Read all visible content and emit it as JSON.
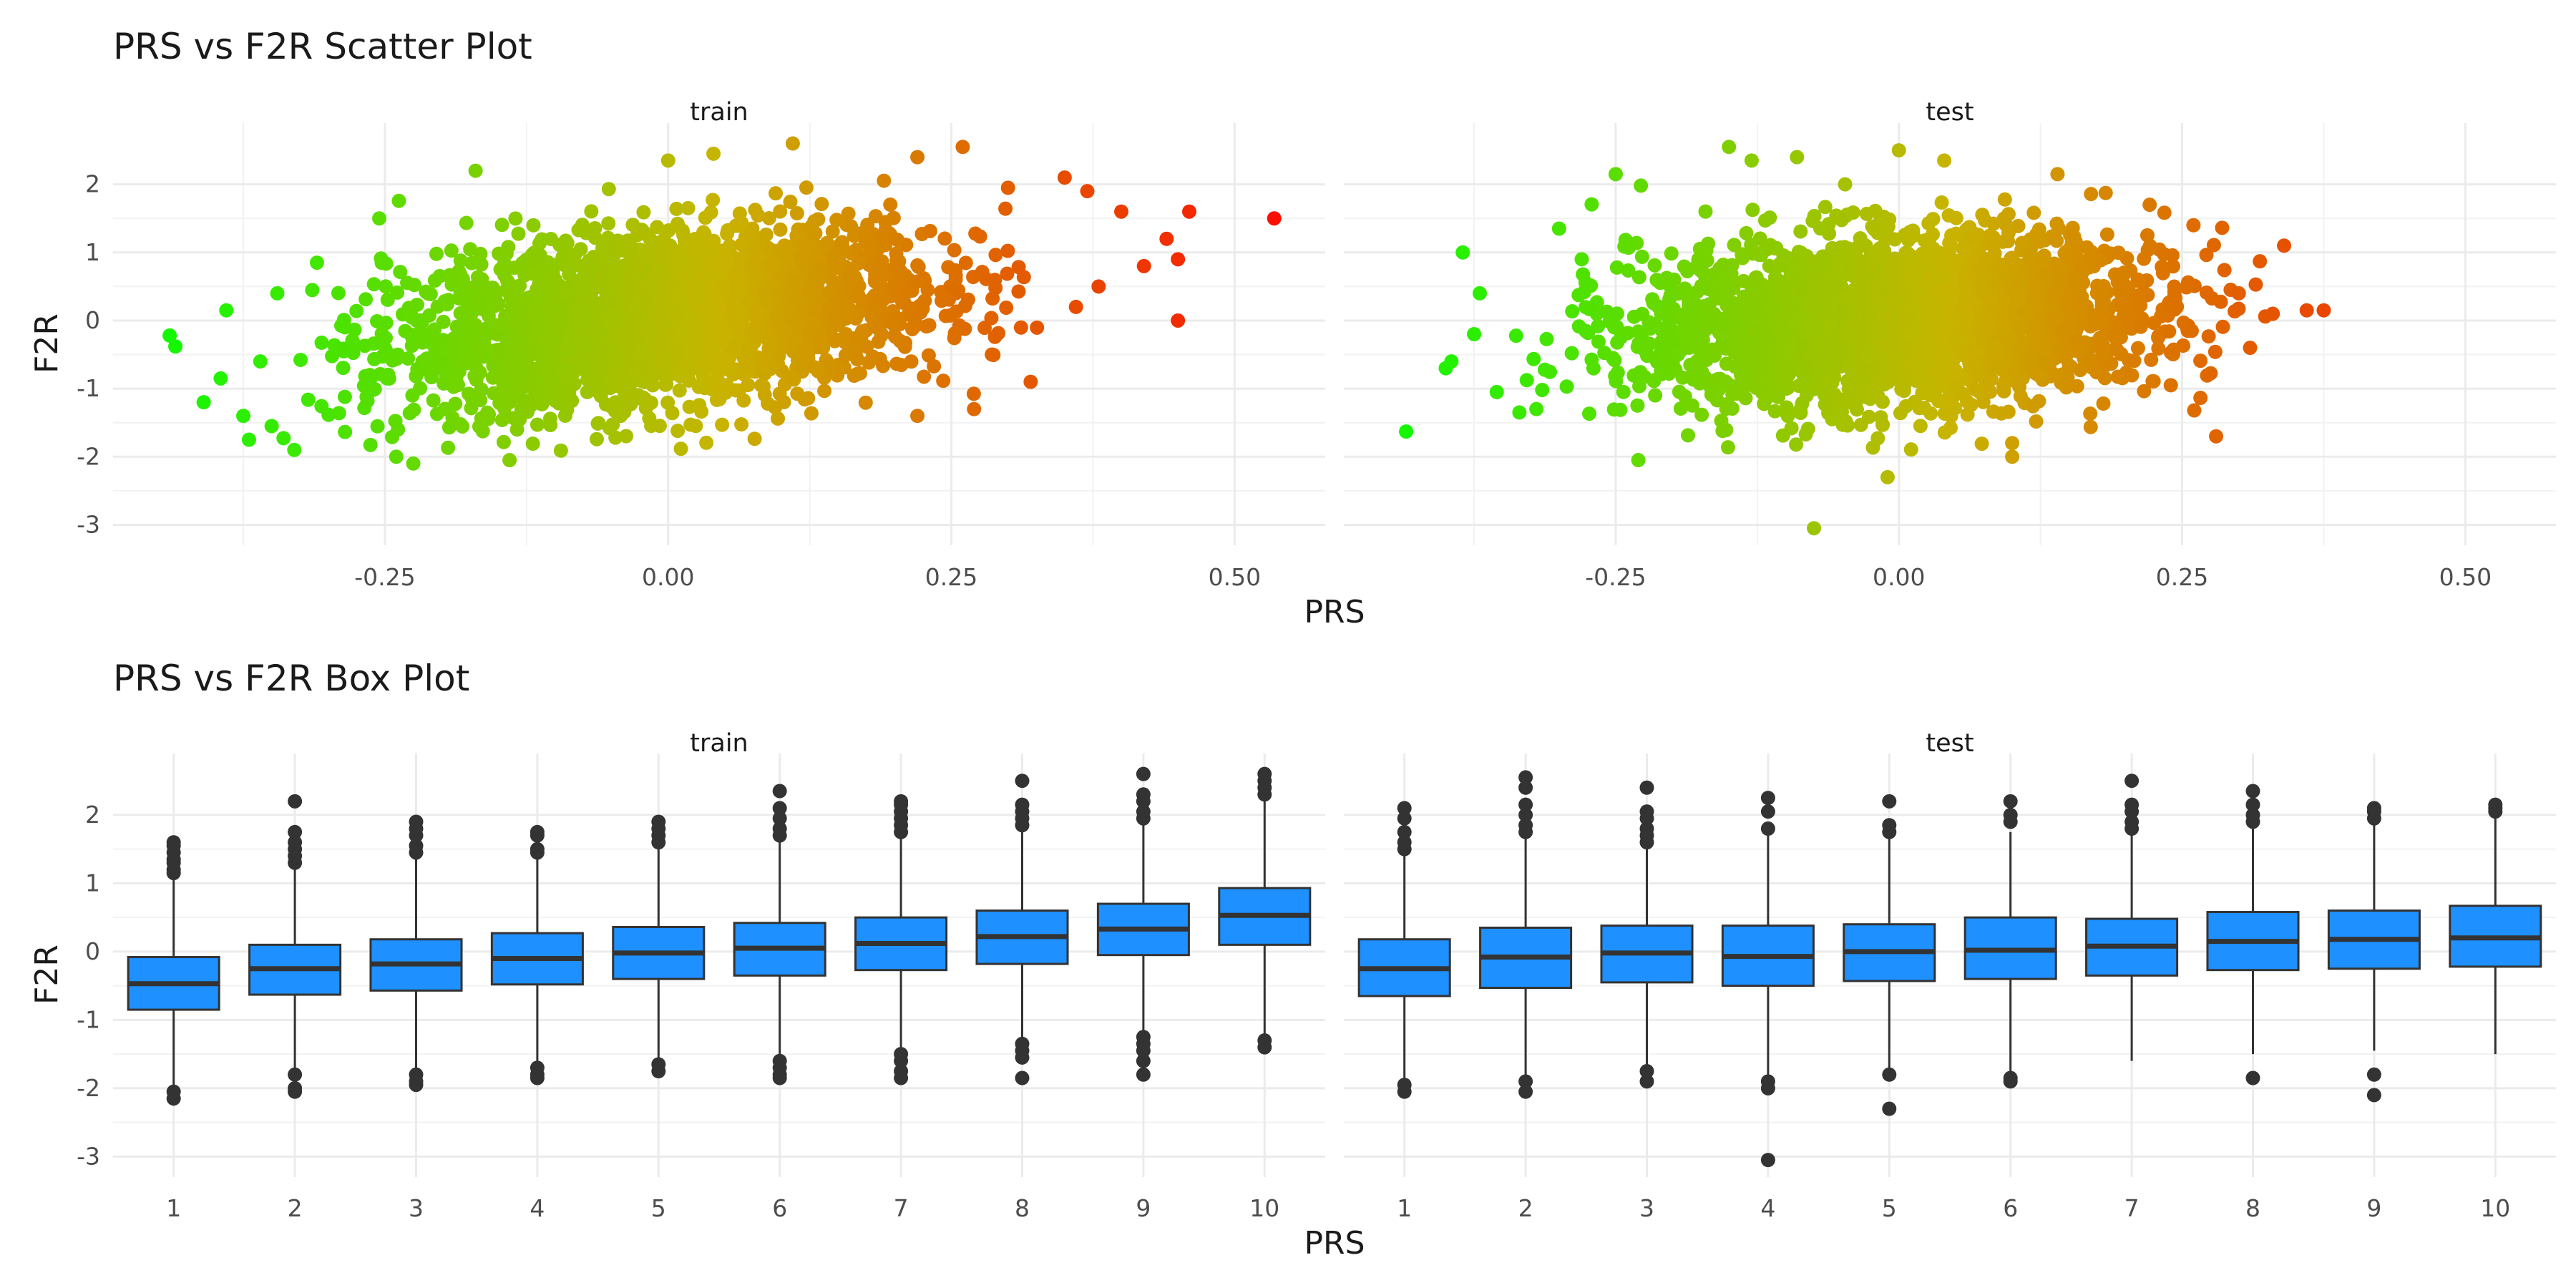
{
  "chart_data": [
    {
      "type": "scatter",
      "title": "PRS vs F2R Scatter Plot",
      "xlabel": "PRS",
      "ylabel": "F2R",
      "facets": [
        "train",
        "test"
      ],
      "xlim": [
        -0.49,
        0.58
      ],
      "ylim": [
        -3.3,
        2.9
      ],
      "x_ticks": [
        "-0.25",
        "0.00",
        "0.25",
        "0.50"
      ],
      "x_tick_values": [
        -0.25,
        0,
        0.25,
        0.5
      ],
      "y_ticks": [
        "2",
        "1",
        "0",
        "-1",
        "-2",
        "-3"
      ],
      "y_tick_values": [
        2,
        1,
        0,
        -1,
        -2,
        -3
      ],
      "color_scale": {
        "low": "#00ff00",
        "mid": "#c8b400",
        "high": "#ff0000",
        "mapped_to": "PRS"
      },
      "grid": true,
      "legend": "none",
      "series": [
        {
          "name": "train",
          "trend_slope": 1.9,
          "points": [
            [
              -0.44,
              -0.22
            ],
            [
              -0.435,
              -0.38
            ],
            [
              -0.41,
              -1.2
            ],
            [
              -0.395,
              -0.85
            ],
            [
              -0.39,
              0.15
            ],
            [
              -0.375,
              -1.4
            ],
            [
              -0.37,
              -1.75
            ],
            [
              -0.36,
              -0.6
            ],
            [
              -0.35,
              -1.55
            ],
            [
              -0.345,
              0.4
            ],
            [
              -0.33,
              -1.9
            ],
            [
              -0.31,
              0.85
            ],
            [
              -0.255,
              1.5
            ],
            [
              -0.24,
              -2.0
            ],
            [
              -0.225,
              -2.1
            ],
            [
              -0.17,
              2.2
            ],
            [
              -0.14,
              -2.05
            ],
            [
              0.0,
              2.35
            ],
            [
              0.04,
              2.45
            ],
            [
              0.11,
              2.6
            ],
            [
              0.22,
              2.4
            ],
            [
              0.26,
              2.55
            ],
            [
              0.3,
              1.95
            ],
            [
              0.32,
              -0.9
            ],
            [
              0.35,
              2.1
            ],
            [
              0.37,
              1.9
            ],
            [
              0.4,
              1.6
            ],
            [
              0.42,
              0.8
            ],
            [
              0.44,
              1.2
            ],
            [
              0.45,
              0.0
            ],
            [
              0.45,
              0.9
            ],
            [
              0.46,
              1.6
            ],
            [
              0.535,
              1.5
            ],
            [
              0.27,
              -1.3
            ],
            [
              0.22,
              -1.4
            ],
            [
              0.36,
              0.2
            ],
            [
              0.38,
              0.5
            ]
          ]
        },
        {
          "name": "test",
          "trend_slope": 1.0,
          "points": [
            [
              -0.435,
              -1.63
            ],
            [
              -0.4,
              -0.7
            ],
            [
              -0.395,
              -0.6
            ],
            [
              -0.385,
              1.0
            ],
            [
              -0.375,
              -0.2
            ],
            [
              -0.37,
              0.4
            ],
            [
              -0.355,
              -1.05
            ],
            [
              -0.335,
              -1.35
            ],
            [
              -0.32,
              -1.3
            ],
            [
              -0.3,
              1.35
            ],
            [
              -0.28,
              0.9
            ],
            [
              -0.25,
              2.15
            ],
            [
              -0.23,
              -2.05
            ],
            [
              -0.15,
              2.55
            ],
            [
              -0.13,
              2.35
            ],
            [
              -0.09,
              2.4
            ],
            [
              -0.075,
              -3.05
            ],
            [
              -0.01,
              -2.3
            ],
            [
              0.0,
              2.5
            ],
            [
              0.04,
              2.35
            ],
            [
              0.1,
              -2.0
            ],
            [
              0.1,
              -1.8
            ],
            [
              0.14,
              2.15
            ],
            [
              0.24,
              -0.95
            ],
            [
              0.26,
              1.4
            ],
            [
              0.28,
              -1.7
            ],
            [
              0.3,
              0.4
            ],
            [
              0.33,
              0.1
            ],
            [
              0.34,
              1.1
            ],
            [
              0.36,
              0.15
            ],
            [
              0.375,
              0.15
            ],
            [
              0.31,
              -0.4
            ]
          ]
        }
      ]
    },
    {
      "type": "box",
      "title": "PRS vs F2R Box Plot",
      "xlabel": "PRS",
      "ylabel": "F2R",
      "facets": [
        "train",
        "test"
      ],
      "categories": [
        "1",
        "2",
        "3",
        "4",
        "5",
        "6",
        "7",
        "8",
        "9",
        "10"
      ],
      "ylim": [
        -3.3,
        2.9
      ],
      "y_ticks": [
        "2",
        "1",
        "0",
        "-1",
        "-2",
        "-3"
      ],
      "y_tick_values": [
        2,
        1,
        0,
        -1,
        -2,
        -3
      ],
      "box_fill": "#1e90ff",
      "box_stroke": "#333333",
      "grid": true,
      "series": [
        {
          "name": "train",
          "boxes": [
            {
              "q1": -0.85,
              "median": -0.47,
              "q3": -0.08,
              "lo": -2.0,
              "hi": 1.05,
              "outliers": [
                1.15,
                1.2,
                1.3,
                1.35,
                1.45,
                1.55,
                1.6,
                -2.05,
                -2.15
              ]
            },
            {
              "q1": -0.63,
              "median": -0.25,
              "q3": 0.1,
              "lo": -1.75,
              "hi": 1.2,
              "outliers": [
                1.3,
                1.4,
                1.5,
                1.6,
                1.75,
                2.2,
                -1.8,
                -2.0,
                -2.05
              ]
            },
            {
              "q1": -0.57,
              "median": -0.18,
              "q3": 0.18,
              "lo": -1.7,
              "hi": 1.35,
              "outliers": [
                1.45,
                1.55,
                1.7,
                1.8,
                1.9,
                -1.8,
                -1.9,
                -1.95
              ]
            },
            {
              "q1": -0.48,
              "median": -0.1,
              "q3": 0.27,
              "lo": -1.6,
              "hi": 1.4,
              "outliers": [
                1.45,
                1.5,
                1.7,
                1.75,
                -1.7,
                -1.8,
                -1.85
              ]
            },
            {
              "q1": -0.4,
              "median": -0.02,
              "q3": 0.36,
              "lo": -1.6,
              "hi": 1.55,
              "outliers": [
                1.6,
                1.7,
                1.8,
                1.9,
                -1.65,
                -1.75
              ]
            },
            {
              "q1": -0.35,
              "median": 0.05,
              "q3": 0.42,
              "lo": -1.5,
              "hi": 1.65,
              "outliers": [
                1.7,
                1.8,
                1.95,
                2.1,
                2.35,
                -1.6,
                -1.7,
                -1.8,
                -1.85
              ]
            },
            {
              "q1": -0.27,
              "median": 0.12,
              "q3": 0.5,
              "lo": -1.4,
              "hi": 1.7,
              "outliers": [
                1.75,
                1.85,
                1.95,
                2.05,
                2.15,
                2.2,
                -1.5,
                -1.6,
                -1.75,
                -1.85
              ]
            },
            {
              "q1": -0.18,
              "median": 0.22,
              "q3": 0.6,
              "lo": -1.3,
              "hi": 1.8,
              "outliers": [
                1.85,
                1.95,
                2.05,
                2.15,
                2.5,
                -1.35,
                -1.45,
                -1.55,
                -1.85
              ]
            },
            {
              "q1": -0.05,
              "median": 0.33,
              "q3": 0.7,
              "lo": -1.15,
              "hi": 1.85,
              "outliers": [
                1.95,
                2.05,
                2.2,
                2.3,
                2.6,
                -1.25,
                -1.35,
                -1.45,
                -1.6,
                -1.8
              ]
            },
            {
              "q1": 0.1,
              "median": 0.53,
              "q3": 0.93,
              "lo": -1.2,
              "hi": 2.2,
              "outliers": [
                2.3,
                2.4,
                2.5,
                2.6,
                -1.3,
                -1.4
              ]
            }
          ]
        },
        {
          "name": "test",
          "boxes": [
            {
              "q1": -0.65,
              "median": -0.25,
              "q3": 0.18,
              "lo": -1.9,
              "hi": 1.4,
              "outliers": [
                1.5,
                1.6,
                1.75,
                1.95,
                2.1,
                -1.95,
                -2.05
              ]
            },
            {
              "q1": -0.53,
              "median": -0.08,
              "q3": 0.35,
              "lo": -1.8,
              "hi": 1.65,
              "outliers": [
                1.75,
                1.85,
                2.0,
                2.15,
                2.4,
                2.55,
                -1.9,
                -2.05
              ]
            },
            {
              "q1": -0.45,
              "median": -0.02,
              "q3": 0.38,
              "lo": -1.65,
              "hi": 1.55,
              "outliers": [
                1.6,
                1.7,
                1.8,
                1.95,
                2.05,
                2.4,
                -1.75,
                -1.9
              ]
            },
            {
              "q1": -0.5,
              "median": -0.07,
              "q3": 0.38,
              "lo": -1.8,
              "hi": 1.7,
              "outliers": [
                1.8,
                2.05,
                2.25,
                -1.9,
                -2.0,
                -3.05
              ]
            },
            {
              "q1": -0.43,
              "median": 0.0,
              "q3": 0.4,
              "lo": -1.75,
              "hi": 1.7,
              "outliers": [
                1.75,
                1.85,
                2.2,
                -1.8,
                -2.3
              ]
            },
            {
              "q1": -0.4,
              "median": 0.02,
              "q3": 0.5,
              "lo": -1.8,
              "hi": 1.75,
              "outliers": [
                1.9,
                2.0,
                2.2,
                -1.85,
                -1.9
              ]
            },
            {
              "q1": -0.35,
              "median": 0.08,
              "q3": 0.48,
              "lo": -1.6,
              "hi": 1.75,
              "outliers": [
                1.8,
                1.9,
                2.05,
                2.15,
                2.5
              ]
            },
            {
              "q1": -0.27,
              "median": 0.15,
              "q3": 0.58,
              "lo": -1.5,
              "hi": 1.8,
              "outliers": [
                1.9,
                2.0,
                2.15,
                2.35,
                -1.85
              ]
            },
            {
              "q1": -0.25,
              "median": 0.18,
              "q3": 0.6,
              "lo": -1.45,
              "hi": 1.9,
              "outliers": [
                1.95,
                2.05,
                2.1,
                -1.8,
                -2.1
              ]
            },
            {
              "q1": -0.22,
              "median": 0.2,
              "q3": 0.67,
              "lo": -1.5,
              "hi": 2.0,
              "outliers": [
                2.05,
                2.1,
                2.15
              ]
            }
          ]
        }
      ]
    }
  ]
}
